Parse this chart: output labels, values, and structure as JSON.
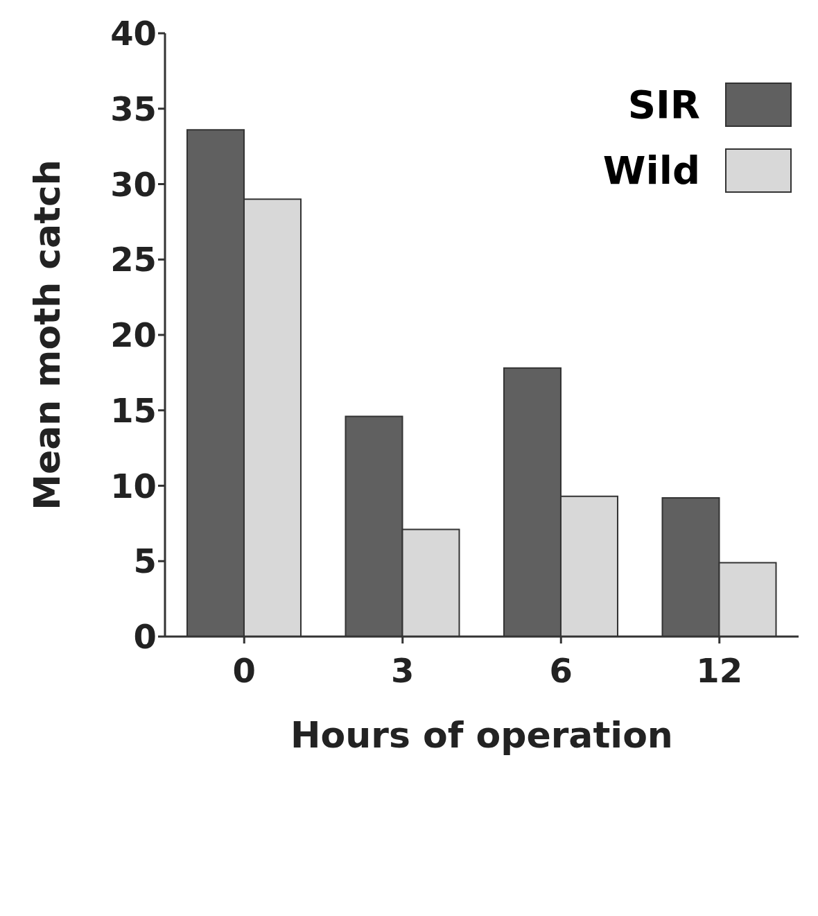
{
  "chart_data": {
    "type": "bar",
    "xlabel": "Hours of operation",
    "ylabel": "Mean moth catch",
    "categories": [
      "0",
      "3",
      "6",
      "12"
    ],
    "series": [
      {
        "name": "SIR",
        "color": "#606060",
        "values": [
          33.6,
          14.6,
          17.8,
          9.2
        ]
      },
      {
        "name": "Wild",
        "color": "#d8d8d8",
        "values": [
          29.0,
          7.1,
          9.3,
          4.9
        ]
      }
    ],
    "ylim": [
      0,
      40
    ],
    "yticks": [
      0,
      5,
      10,
      15,
      20,
      25,
      30,
      35,
      40
    ],
    "grid": false,
    "legend": "top right"
  }
}
